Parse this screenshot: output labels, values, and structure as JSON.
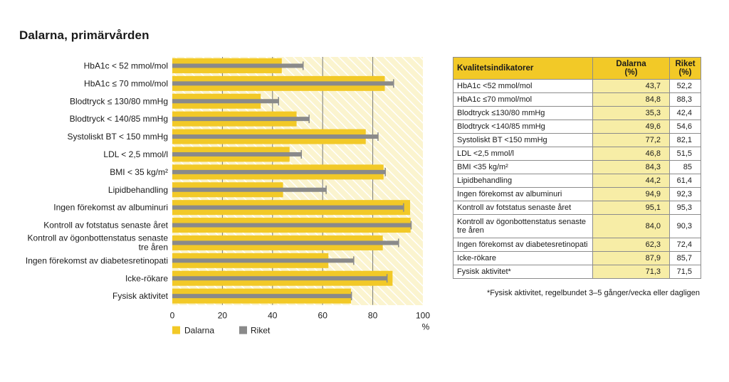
{
  "page": {
    "title": "Dalarna, primärvården"
  },
  "colors": {
    "dalarna": "#f2c927",
    "riket": "#8a8a8a",
    "background": "#fbf4cf",
    "hatch": "#ffffff",
    "grid": "#7a7a7a",
    "table_header": "#f2c927",
    "table_dalarna_col": "#f7eda6"
  },
  "chart_data": {
    "type": "bar",
    "orientation": "horizontal",
    "title": "Dalarna, primärvården",
    "categories": [
      "HbA1c < 52 mmol/mol",
      "HbA1c ≤ 70 mmol/mol",
      "Blodtryck ≤ 130/80 mmHg",
      "Blodtryck < 140/85 mmHg",
      "Systoliskt BT < 150 mmHg",
      "LDL < 2,5 mmol/l",
      "BMI < 35 kg/m²",
      "Lipidbehandling",
      "Ingen förekomst av albuminuri",
      "Kontroll av fotstatus senaste året",
      "Kontroll av ögonbottenstatus senaste tre åren",
      "Ingen förekomst av diabetesretinopati",
      "Icke-rökare",
      "Fysisk aktivitet"
    ],
    "series": [
      {
        "name": "Dalarna",
        "values": [
          43.7,
          84.8,
          35.3,
          49.6,
          77.2,
          46.8,
          84.3,
          44.2,
          94.9,
          95.1,
          84.0,
          62.3,
          87.9,
          71.3
        ]
      },
      {
        "name": "Riket",
        "values": [
          52.2,
          88.3,
          42.4,
          54.6,
          82.1,
          51.5,
          85,
          61.4,
          92.3,
          95.3,
          90.3,
          72.4,
          85.7,
          71.5
        ]
      }
    ],
    "xlim": [
      0,
      100
    ],
    "xticks": [
      "0",
      "20",
      "40",
      "60",
      "80",
      "100"
    ],
    "xlabel": "%",
    "legend": [
      "Dalarna",
      "Riket"
    ],
    "legend_position": "bottom-left"
  },
  "table": {
    "headers": {
      "indicator": "Kvalitetsindikatorer",
      "dalarna_line1": "Dalarna",
      "dalarna_line2": "(%)",
      "riket_line1": "Riket",
      "riket_line2": "(%)"
    },
    "rows": [
      {
        "label": "HbA1c <52 mmol/mol",
        "dalarna": "43,7",
        "riket": "52,2"
      },
      {
        "label": "HbA1c ≤70 mmol/mol",
        "dalarna": "84,8",
        "riket": "88,3"
      },
      {
        "label": "Blodtryck ≤130/80 mmHg",
        "dalarna": "35,3",
        "riket": "42,4"
      },
      {
        "label": "Blodtryck <140/85 mmHg",
        "dalarna": "49,6",
        "riket": "54,6"
      },
      {
        "label": "Systoliskt BT <150 mmHg",
        "dalarna": "77,2",
        "riket": "82,1"
      },
      {
        "label": "LDL <2,5 mmol/l",
        "dalarna": "46,8",
        "riket": "51,5"
      },
      {
        "label": "BMI <35 kg/m²",
        "dalarna": "84,3",
        "riket": "85"
      },
      {
        "label": "Lipidbehandling",
        "dalarna": "44,2",
        "riket": "61,4"
      },
      {
        "label": "Ingen förekomst av albuminuri",
        "dalarna": "94,9",
        "riket": "92,3"
      },
      {
        "label": "Kontroll av fotstatus senaste året",
        "dalarna": "95,1",
        "riket": "95,3"
      },
      {
        "label": "Kontroll av ögonbottenstatus senaste tre åren",
        "dalarna": "84,0",
        "riket": "90,3"
      },
      {
        "label": "Ingen förekomst av diabetesretinopati",
        "dalarna": "62,3",
        "riket": "72,4"
      },
      {
        "label": "Icke-rökare",
        "dalarna": "87,9",
        "riket": "85,7"
      },
      {
        "label": "Fysisk aktivitet*",
        "dalarna": "71,3",
        "riket": "71,5"
      }
    ],
    "footnote": "*Fysisk aktivitet, regelbundet 3–5 gånger/vecka eller dagligen"
  }
}
